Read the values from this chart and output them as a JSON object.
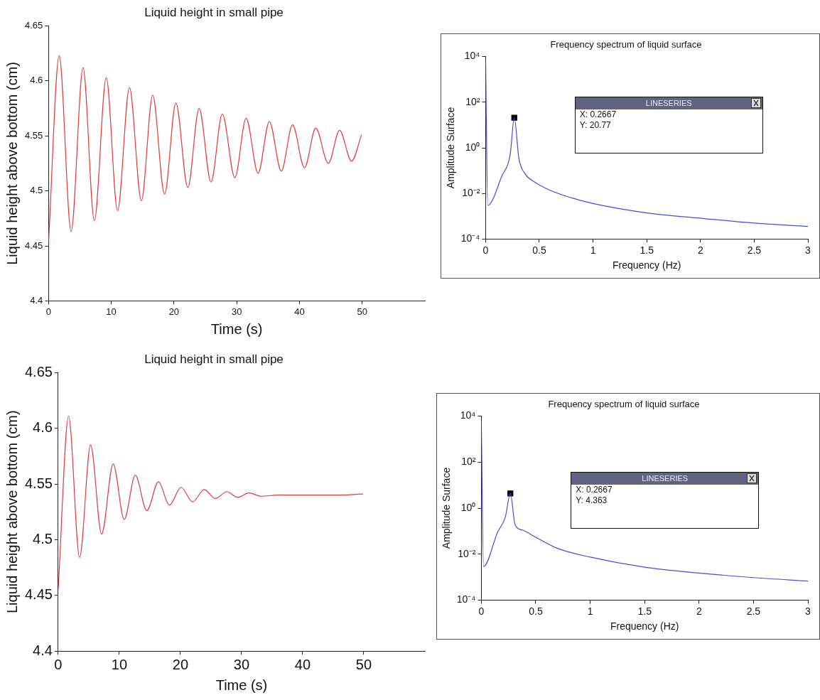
{
  "chart_data": [
    {
      "type": "line",
      "title": "Liquid height in small pipe",
      "xlabel": "Time (s)",
      "ylabel": "Liquid height above bottom (cm)",
      "xlim": [
        0,
        60
      ],
      "ylim": [
        4.4,
        4.65
      ],
      "xticks": [
        0,
        10,
        20,
        30,
        40,
        50
      ],
      "yticks": [
        4.4,
        4.45,
        4.5,
        4.55,
        4.6,
        4.65
      ],
      "grid": false,
      "marker": "none",
      "series": [
        {
          "color": "#e03a3a",
          "x": [
            0,
            1.7,
            3.6,
            5.5,
            7.3,
            9.2,
            11.0,
            12.9,
            14.8,
            16.6,
            18.5,
            20.3,
            22.2,
            24.0,
            25.9,
            27.7,
            29.7,
            31.5,
            33.4,
            35.2,
            37.1,
            38.9,
            40.8,
            42.6,
            44.6,
            46.4,
            48.3,
            49.9
          ],
          "values": [
            4.453,
            4.623,
            4.463,
            4.612,
            4.473,
            4.603,
            4.482,
            4.594,
            4.491,
            4.587,
            4.497,
            4.58,
            4.503,
            4.575,
            4.508,
            4.57,
            4.512,
            4.566,
            4.516,
            4.563,
            4.518,
            4.56,
            4.521,
            4.557,
            4.525,
            4.555,
            4.527,
            4.551
          ]
        }
      ]
    },
    {
      "type": "line",
      "title": "Frequency spectrum of liquid surface",
      "xlabel": "Frequency (Hz)",
      "ylabel": "Amplitude Surface",
      "xlim": [
        0,
        3
      ],
      "ylim": [
        0.0001,
        10000
      ],
      "xticks": [
        0,
        0.5,
        1,
        1.5,
        2,
        2.5,
        3
      ],
      "yticks": [
        {
          "value": 0.0001,
          "label": "10⁻⁴"
        },
        {
          "value": 0.01,
          "label": "10⁻²"
        },
        {
          "value": 1,
          "label": "10⁰"
        },
        {
          "value": 100,
          "label": "10²"
        },
        {
          "value": 10000,
          "label": "10⁴"
        }
      ],
      "log": true,
      "grid": false,
      "marker": "none",
      "series": [
        {
          "color": "#4a4ad8",
          "x": [
            0,
            0.02,
            0.15,
            0.23,
            0.2667,
            0.31,
            0.37,
            0.45,
            0.6,
            0.8,
            1.0,
            1.5,
            2.0,
            2.5,
            3.0
          ],
          "values": [
            7000,
            0.003,
            0.056,
            0.56,
            20.77,
            0.34,
            0.07,
            0.033,
            0.0138,
            0.0064,
            0.0036,
            0.0014,
            0.00082,
            0.0005,
            0.00036
          ]
        },
        {
          "type": "scatter",
          "marker": "square",
          "color": "#000000",
          "x": [
            0.2667
          ],
          "values": [
            20.77
          ]
        }
      ],
      "annotations": [
        "LINESERIES",
        "X: 0.2667",
        "Y: 20.77"
      ]
    },
    {
      "type": "line",
      "title": "Liquid height in small pipe",
      "xlabel": "Time (s)",
      "ylabel": "Liquid height above bottom (cm)",
      "xlim": [
        0,
        60
      ],
      "ylim": [
        4.4,
        4.65
      ],
      "xticks": [
        0,
        10,
        20,
        30,
        40,
        50
      ],
      "yticks": [
        4.4,
        4.45,
        4.5,
        4.55,
        4.6,
        4.65
      ],
      "grid": false,
      "marker": "none",
      "series": [
        {
          "color": "#e03a3a",
          "x": [
            0,
            1.7,
            3.5,
            5.3,
            7.1,
            9.0,
            10.8,
            12.6,
            14.5,
            16.4,
            18.2,
            20.1,
            22.0,
            23.9,
            25.7,
            27.6,
            29.4,
            31.2,
            33.2,
            36,
            40,
            45,
            49.9
          ],
          "values": [
            4.456,
            4.611,
            4.484,
            4.585,
            4.505,
            4.568,
            4.518,
            4.558,
            4.526,
            4.552,
            4.531,
            4.547,
            4.534,
            4.545,
            4.537,
            4.543,
            4.538,
            4.542,
            4.539,
            4.54,
            4.54,
            4.54,
            4.541
          ]
        }
      ]
    },
    {
      "type": "line",
      "title": "Frequency spectrum of liquid surface",
      "xlabel": "Frequency (Hz)",
      "ylabel": "Amplitude Surface",
      "xlim": [
        0,
        3
      ],
      "ylim": [
        0.0001,
        10000
      ],
      "xticks": [
        0,
        0.5,
        1,
        1.5,
        2,
        2.5,
        3
      ],
      "yticks": [
        {
          "value": 0.0001,
          "label": "10⁻⁴"
        },
        {
          "value": 0.01,
          "label": "10⁻²"
        },
        {
          "value": 1,
          "label": "10⁰"
        },
        {
          "value": 100,
          "label": "10²"
        },
        {
          "value": 10000,
          "label": "10⁴"
        }
      ],
      "log": true,
      "grid": false,
      "marker": "none",
      "series": [
        {
          "color": "#4a4ad8",
          "x": [
            0,
            0.02,
            0.15,
            0.22,
            0.2667,
            0.31,
            0.38,
            0.5,
            0.7,
            1.0,
            1.5,
            2.0,
            2.5,
            3.0
          ],
          "values": [
            6000,
            0.0029,
            0.09,
            0.4,
            4.363,
            0.19,
            0.11,
            0.054,
            0.0177,
            0.0074,
            0.0027,
            0.0015,
            0.00095,
            0.00067
          ]
        },
        {
          "type": "scatter",
          "marker": "square",
          "color": "#000000",
          "x": [
            0.2667
          ],
          "values": [
            4.363
          ]
        }
      ],
      "annotations": [
        "LINESERIES",
        "X: 0.2667",
        "Y: 4.363"
      ]
    }
  ]
}
